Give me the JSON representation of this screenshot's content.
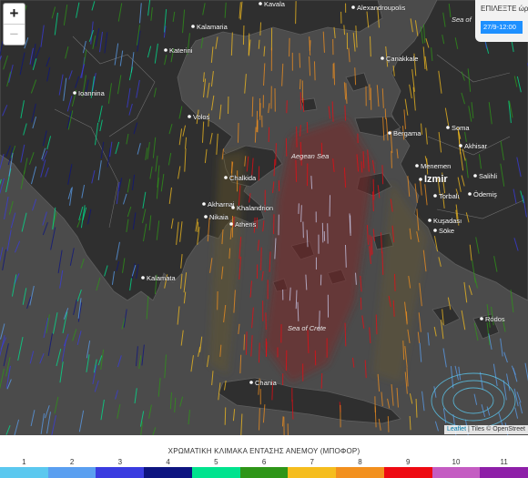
{
  "zoom": {
    "in_label": "+",
    "out_label": "−"
  },
  "time_control": {
    "label": "ΕΠΙΛΕΞΤΕ ώρα",
    "selected": "27/9-12:00"
  },
  "attribution": {
    "leaflet": "Leaflet",
    "rest": "| Tiles © OpenStreet"
  },
  "sea_labels": [
    {
      "name": "Aegean Sea"
    },
    {
      "name": "Sea of Crete"
    },
    {
      "name": "Sea of"
    }
  ],
  "places": [
    {
      "name": "Kavala"
    },
    {
      "name": "Alexandroupolis"
    },
    {
      "name": "Kalamaria"
    },
    {
      "name": "Katerini"
    },
    {
      "name": "Ioannina"
    },
    {
      "name": "Çanakkale"
    },
    {
      "name": "Volos"
    },
    {
      "name": "Bergama"
    },
    {
      "name": "Soma"
    },
    {
      "name": "Akhisar"
    },
    {
      "name": "Menemen"
    },
    {
      "name": "Izmir"
    },
    {
      "name": "Salihli"
    },
    {
      "name": "Torbalı"
    },
    {
      "name": "Ödemiş"
    },
    {
      "name": "Chalkida"
    },
    {
      "name": "Akharnai"
    },
    {
      "name": "Khalandrion"
    },
    {
      "name": "Nikaia"
    },
    {
      "name": "Athens"
    },
    {
      "name": "Kuşadası"
    },
    {
      "name": "Söke"
    },
    {
      "name": "Kalamata"
    },
    {
      "name": "Ródos"
    },
    {
      "name": "Chania"
    }
  ],
  "legend": {
    "title": "ΧΡΩΜΑΤΙΚΗ ΚΛΙΜΑΚΑ ΕΝΤΑΣΗΣ ΑΝΕΜΟΥ (ΜΠΟΦΟΡ)",
    "levels": [
      {
        "label": "1",
        "color": "#5bc8ef"
      },
      {
        "label": "2",
        "color": "#5a9ff0"
      },
      {
        "label": "3",
        "color": "#3a3ce0"
      },
      {
        "label": "4",
        "color": "#0d1480"
      },
      {
        "label": "5",
        "color": "#00e38e"
      },
      {
        "label": "6",
        "color": "#2e9618"
      },
      {
        "label": "7",
        "color": "#f5bd1e"
      },
      {
        "label": "8",
        "color": "#f2901e"
      },
      {
        "label": "9",
        "color": "#ee0a12"
      },
      {
        "label": "10",
        "color": "#c45cc2"
      },
      {
        "label": "11",
        "color": "#8e1fa8"
      }
    ]
  }
}
